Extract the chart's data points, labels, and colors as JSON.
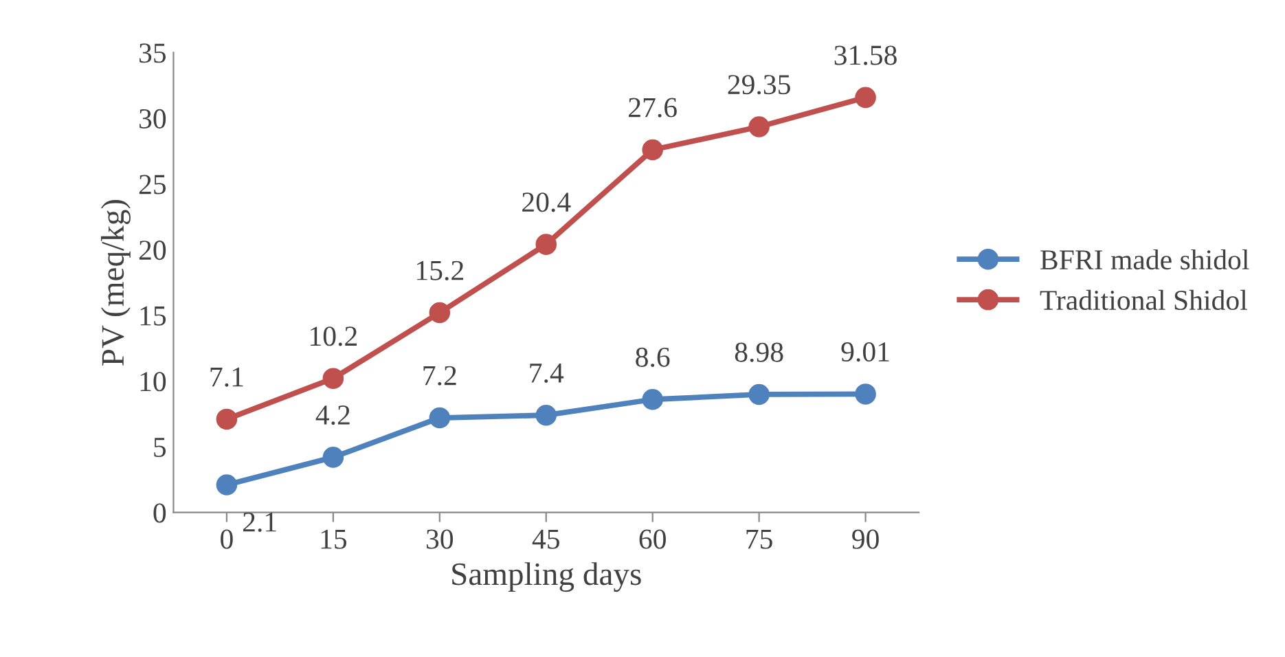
{
  "chart_data": {
    "type": "line",
    "xlabel": "Sampling days",
    "ylabel": "PV (meq/kg)",
    "categories": [
      "0",
      "15",
      "30",
      "45",
      "60",
      "75",
      "90"
    ],
    "series": [
      {
        "name": "BFRI made shidol",
        "color": "#4f81bd",
        "values": [
          2.1,
          4.2,
          7.2,
          7.4,
          8.6,
          8.98,
          9.01
        ]
      },
      {
        "name": "Traditional Shidol",
        "color": "#c0504d",
        "values": [
          7.1,
          10.2,
          15.2,
          20.4,
          27.6,
          29.35,
          31.58
        ]
      }
    ],
    "ylim": [
      0,
      35
    ],
    "yticks": [
      0,
      5,
      10,
      15,
      20,
      25,
      30,
      35
    ],
    "grid": false,
    "legend": "right",
    "marker": "circle",
    "line_style": "solid",
    "data_labels": true
  }
}
